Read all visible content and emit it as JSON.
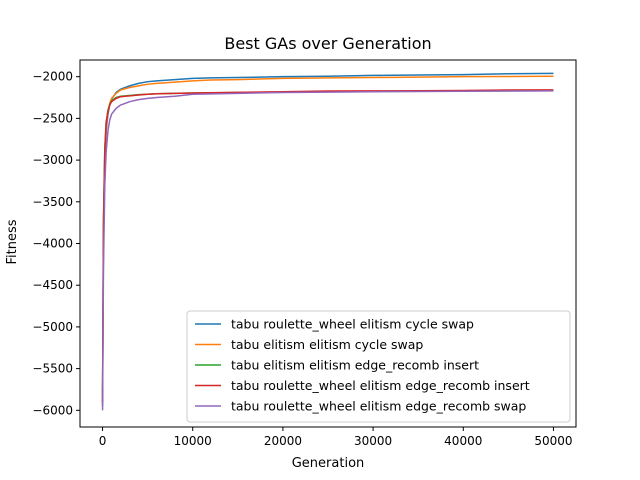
{
  "chart_data": {
    "type": "line",
    "title": "Best GAs over Generation",
    "xlabel": "Generation",
    "ylabel": "Fitness",
    "xlim": [
      -2500,
      52500
    ],
    "ylim": [
      -6200,
      -1800
    ],
    "xticks": [
      0,
      10000,
      20000,
      30000,
      40000,
      50000
    ],
    "xtick_labels": [
      "0",
      "10000",
      "20000",
      "30000",
      "40000",
      "50000"
    ],
    "yticks": [
      -6000,
      -5500,
      -5000,
      -4500,
      -4000,
      -3500,
      -3000,
      -2500,
      -2000
    ],
    "ytick_labels": [
      "−6000",
      "−5500",
      "−5000",
      "−4500",
      "−4000",
      "−3500",
      "−3000",
      "−2500",
      "−2000"
    ],
    "grid": false,
    "legend_position": "lower-right",
    "series": [
      {
        "name": "tabu roulette_wheel elitism cycle swap",
        "color": "#1f77b4",
        "points": [
          [
            0,
            -5950
          ],
          [
            100,
            -4000
          ],
          [
            250,
            -3000
          ],
          [
            400,
            -2650
          ],
          [
            600,
            -2450
          ],
          [
            800,
            -2330
          ],
          [
            1000,
            -2270
          ],
          [
            1500,
            -2190
          ],
          [
            2000,
            -2150
          ],
          [
            3000,
            -2110
          ],
          [
            4000,
            -2080
          ],
          [
            5000,
            -2060
          ],
          [
            6000,
            -2050
          ],
          [
            8000,
            -2035
          ],
          [
            10000,
            -2020
          ],
          [
            12000,
            -2015
          ],
          [
            15000,
            -2010
          ],
          [
            20000,
            -2000
          ],
          [
            25000,
            -1995
          ],
          [
            30000,
            -1985
          ],
          [
            35000,
            -1980
          ],
          [
            40000,
            -1975
          ],
          [
            45000,
            -1965
          ],
          [
            50000,
            -1960
          ]
        ]
      },
      {
        "name": "tabu elitism elitism cycle swap",
        "color": "#ff7f0e",
        "points": [
          [
            0,
            -5900
          ],
          [
            100,
            -3900
          ],
          [
            250,
            -2950
          ],
          [
            400,
            -2600
          ],
          [
            600,
            -2420
          ],
          [
            800,
            -2320
          ],
          [
            1000,
            -2260
          ],
          [
            1500,
            -2200
          ],
          [
            2000,
            -2160
          ],
          [
            3000,
            -2130
          ],
          [
            4000,
            -2110
          ],
          [
            5000,
            -2090
          ],
          [
            6000,
            -2080
          ],
          [
            8000,
            -2065
          ],
          [
            10000,
            -2050
          ],
          [
            12000,
            -2040
          ],
          [
            15000,
            -2035
          ],
          [
            20000,
            -2020
          ],
          [
            25000,
            -2015
          ],
          [
            30000,
            -2010
          ],
          [
            35000,
            -2005
          ],
          [
            40000,
            -2000
          ],
          [
            45000,
            -1998
          ],
          [
            50000,
            -1995
          ]
        ]
      },
      {
        "name": "tabu elitism elitism edge_recomb insert",
        "color": "#2ca02c",
        "points": [
          [
            0,
            -5800
          ],
          [
            100,
            -3700
          ],
          [
            250,
            -2850
          ],
          [
            400,
            -2550
          ],
          [
            600,
            -2400
          ],
          [
            800,
            -2330
          ],
          [
            1000,
            -2290
          ],
          [
            1500,
            -2250
          ],
          [
            2000,
            -2235
          ],
          [
            3000,
            -2225
          ],
          [
            4000,
            -2215
          ],
          [
            5000,
            -2210
          ],
          [
            6000,
            -2205
          ],
          [
            8000,
            -2200
          ],
          [
            10000,
            -2195
          ],
          [
            15000,
            -2190
          ],
          [
            20000,
            -2185
          ],
          [
            25000,
            -2180
          ],
          [
            30000,
            -2178
          ],
          [
            35000,
            -2175
          ],
          [
            40000,
            -2172
          ],
          [
            45000,
            -2170
          ],
          [
            50000,
            -2168
          ]
        ]
      },
      {
        "name": "tabu roulette_wheel elitism edge_recomb insert",
        "color": "#d62728",
        "points": [
          [
            0,
            -5900
          ],
          [
            100,
            -3800
          ],
          [
            250,
            -2900
          ],
          [
            400,
            -2550
          ],
          [
            600,
            -2420
          ],
          [
            800,
            -2340
          ],
          [
            1000,
            -2300
          ],
          [
            1500,
            -2260
          ],
          [
            2000,
            -2240
          ],
          [
            3000,
            -2230
          ],
          [
            4000,
            -2220
          ],
          [
            5000,
            -2210
          ],
          [
            6000,
            -2205
          ],
          [
            8000,
            -2200
          ],
          [
            10000,
            -2195
          ],
          [
            15000,
            -2188
          ],
          [
            20000,
            -2180
          ],
          [
            25000,
            -2172
          ],
          [
            30000,
            -2170
          ],
          [
            35000,
            -2168
          ],
          [
            40000,
            -2165
          ],
          [
            45000,
            -2160
          ],
          [
            50000,
            -2158
          ]
        ]
      },
      {
        "name": "tabu roulette_wheel elitism edge_recomb swap",
        "color": "#9467bd",
        "points": [
          [
            0,
            -6000
          ],
          [
            100,
            -4300
          ],
          [
            250,
            -3300
          ],
          [
            400,
            -2900
          ],
          [
            600,
            -2650
          ],
          [
            800,
            -2520
          ],
          [
            1000,
            -2450
          ],
          [
            1500,
            -2380
          ],
          [
            2000,
            -2340
          ],
          [
            3000,
            -2300
          ],
          [
            4000,
            -2275
          ],
          [
            5000,
            -2260
          ],
          [
            6000,
            -2250
          ],
          [
            8000,
            -2235
          ],
          [
            10000,
            -2210
          ],
          [
            15000,
            -2200
          ],
          [
            20000,
            -2190
          ],
          [
            25000,
            -2185
          ],
          [
            30000,
            -2180
          ],
          [
            35000,
            -2178
          ],
          [
            40000,
            -2175
          ],
          [
            45000,
            -2172
          ],
          [
            50000,
            -2170
          ]
        ]
      }
    ]
  }
}
